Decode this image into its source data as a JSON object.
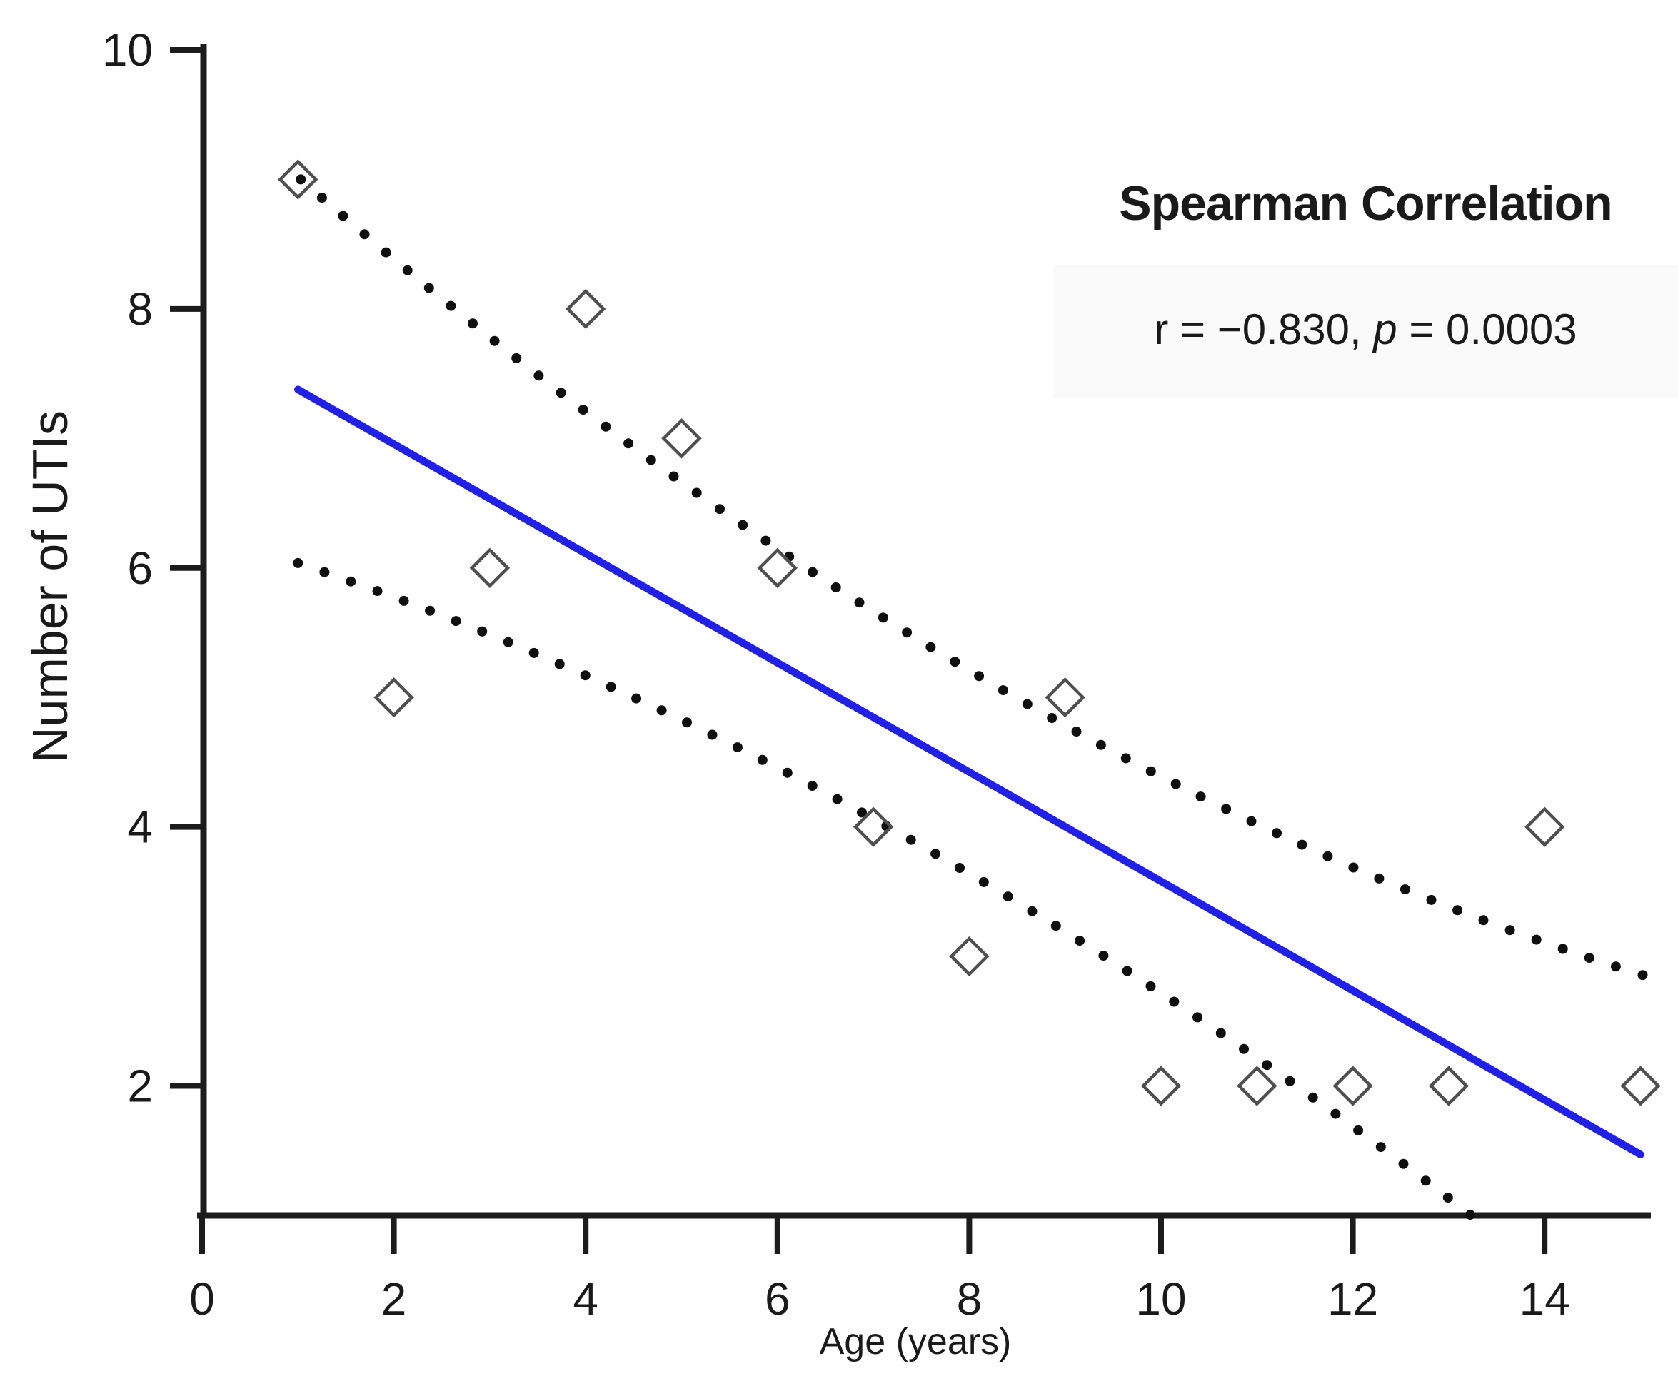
{
  "figure": {
    "background": "#ffffff",
    "colors": {
      "axis": "#1c1c1c",
      "text": "#1a1a1a",
      "regression_line": "#2121e6",
      "ci_dots": "#0f0f0f",
      "diamond_stroke": "#4f4f4f",
      "stats_box_bg": "#fafafa"
    }
  },
  "chart_data": {
    "type": "scatter",
    "title": "",
    "xlabel": "Age (years)",
    "ylabel": "Number of UTIs",
    "xlim": [
      0,
      15.3
    ],
    "ylim": [
      1,
      10
    ],
    "x_ticks": [
      0,
      2,
      4,
      6,
      8,
      10,
      12,
      14
    ],
    "y_ticks": [
      2,
      4,
      6,
      8,
      10
    ],
    "grid": false,
    "points": [
      [
        1,
        9
      ],
      [
        2,
        5
      ],
      [
        3,
        6
      ],
      [
        4,
        8
      ],
      [
        5,
        7
      ],
      [
        6,
        6
      ],
      [
        7,
        4
      ],
      [
        8,
        3
      ],
      [
        9,
        5
      ],
      [
        10,
        2
      ],
      [
        11,
        2
      ],
      [
        12,
        2
      ],
      [
        13,
        2
      ],
      [
        14,
        4
      ],
      [
        15,
        2
      ]
    ],
    "marker": "open-diamond",
    "regression": {
      "intercept": 7.8,
      "slope": -0.422,
      "x_range": [
        1,
        15
      ]
    },
    "ci_band": {
      "style": "dotted",
      "upper": {
        "half_width_base": 0.78,
        "half_width_curve": 0.65,
        "x_center": 8.6,
        "x_norm": 6.6,
        "x_range": [
          1.03,
          15.18
        ]
      },
      "lower": {
        "half_width_base": 0.78,
        "half_width_curve": 0.65,
        "x_center": 7.5,
        "x_norm": 7.0,
        "x_range": [
          1.0,
          13.25
        ]
      },
      "y_clip_min": 0.98
    },
    "annotation": {
      "title": "Spearman Correlation",
      "r_text": "r = −0.830, ",
      "p_symbol": "p",
      "p_text": " = 0.0003"
    }
  }
}
